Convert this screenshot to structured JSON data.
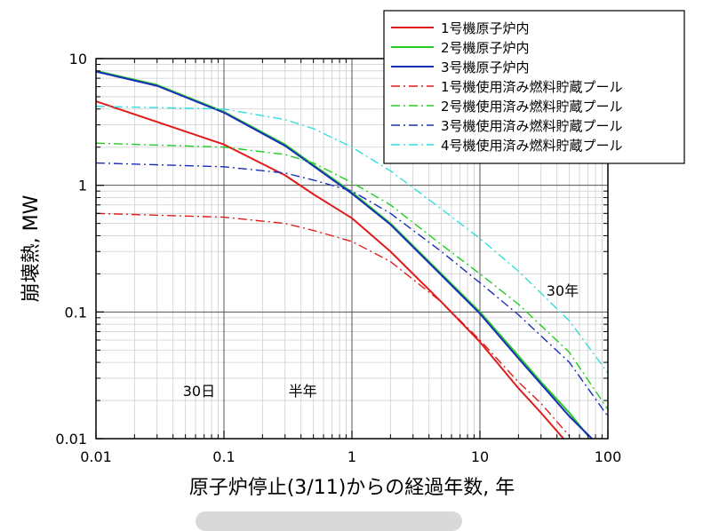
{
  "chart_data": {
    "type": "line",
    "xscale": "log",
    "yscale": "log",
    "xlim": [
      0.01,
      100
    ],
    "ylim": [
      0.01,
      10
    ],
    "xlabel": "原子炉停止(3/11)からの経過年数, 年",
    "ylabel": "崩壊熱, MW",
    "xticks": [
      0.01,
      0.1,
      1,
      10,
      100
    ],
    "xtick_labels": [
      "0.01",
      "0.1",
      "1",
      "10",
      "100"
    ],
    "yticks": [
      0.01,
      0.1,
      1,
      10
    ],
    "ytick_labels": [
      "0.01",
      "0.1",
      "1",
      "10"
    ],
    "grid": true,
    "legend_position": "top-right",
    "annotations": [
      {
        "text": "30日",
        "x": 0.0822
      },
      {
        "text": "半年",
        "x": 0.5
      },
      {
        "text": "30年",
        "x": 30
      }
    ],
    "series": [
      {
        "name": "1号機原子炉内",
        "color": "#e01b1b",
        "dash": "solid",
        "x": [
          0.01,
          0.1,
          0.3,
          0.5,
          1,
          2,
          5,
          10,
          20,
          30,
          45
        ],
        "y": [
          4.6,
          2.1,
          1.2,
          0.85,
          0.55,
          0.3,
          0.12,
          0.058,
          0.025,
          0.016,
          0.01
        ]
      },
      {
        "name": "2号機原子炉内",
        "color": "#22cc22",
        "dash": "solid",
        "x": [
          0.01,
          0.03,
          0.1,
          0.3,
          0.5,
          1,
          2,
          5,
          10,
          20,
          30,
          50,
          70
        ],
        "y": [
          8,
          6.2,
          3.8,
          2.1,
          1.45,
          0.88,
          0.5,
          0.2,
          0.1,
          0.045,
          0.028,
          0.016,
          0.0105
        ]
      },
      {
        "name": "3号機原子炉内",
        "color": "#1a2eb8",
        "dash": "solid",
        "x": [
          0.01,
          0.03,
          0.1,
          0.3,
          0.5,
          1,
          2,
          5,
          10,
          20,
          30,
          50,
          75
        ],
        "y": [
          7.9,
          6.1,
          3.75,
          2.05,
          1.42,
          0.86,
          0.49,
          0.195,
          0.097,
          0.043,
          0.027,
          0.015,
          0.01
        ]
      },
      {
        "name": "1号機使用済み燃料貯蔵プール",
        "color": "#e01b1b",
        "dash": "dashdot",
        "x": [
          0.01,
          0.1,
          0.3,
          0.5,
          1,
          2,
          5,
          10,
          20,
          30,
          50
        ],
        "y": [
          0.6,
          0.56,
          0.5,
          0.44,
          0.36,
          0.25,
          0.12,
          0.06,
          0.028,
          0.019,
          0.0105
        ]
      },
      {
        "name": "2号機使用済み燃料貯蔵プール",
        "color": "#22cc22",
        "dash": "dashdot",
        "x": [
          0.01,
          0.1,
          0.3,
          0.5,
          1,
          2,
          5,
          10,
          20,
          50,
          100
        ],
        "y": [
          2.15,
          2.0,
          1.75,
          1.5,
          1.05,
          0.7,
          0.34,
          0.2,
          0.115,
          0.048,
          0.017
        ]
      },
      {
        "name": "3号機使用済み燃料貯蔵プール",
        "color": "#1a2eb8",
        "dash": "dashdot",
        "x": [
          0.01,
          0.1,
          0.3,
          0.5,
          1,
          2,
          5,
          10,
          20,
          50,
          100
        ],
        "y": [
          1.5,
          1.4,
          1.25,
          1.1,
          0.9,
          0.6,
          0.3,
          0.17,
          0.095,
          0.04,
          0.015
        ]
      },
      {
        "name": "4号機使用済み燃料貯蔵プール",
        "color": "#33dddd",
        "dash": "dashdot",
        "x": [
          0.01,
          0.1,
          0.3,
          0.5,
          1,
          2,
          5,
          10,
          20,
          50,
          100
        ],
        "y": [
          4.2,
          4.0,
          3.3,
          2.8,
          2.0,
          1.3,
          0.65,
          0.38,
          0.21,
          0.085,
          0.033
        ]
      }
    ]
  }
}
